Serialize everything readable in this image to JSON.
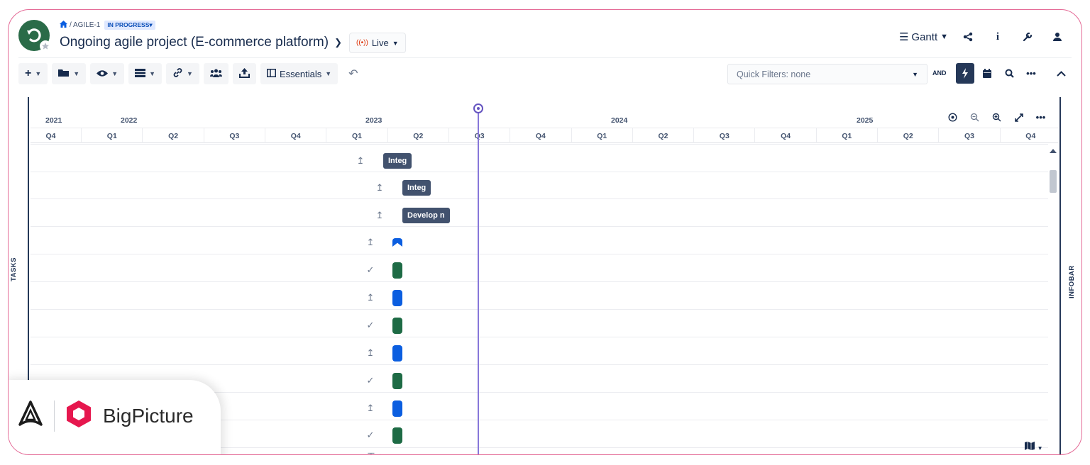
{
  "breadcrumb": {
    "home_icon": "home-icon",
    "key": "/ AGILE-1",
    "status": "IN PROGRESS"
  },
  "project": {
    "title": "Ongoing agile project (E-commerce platform)",
    "live_label": "Live"
  },
  "view": {
    "label": "Gantt"
  },
  "toolbar": {
    "essentials_label": "Essentials",
    "quick_filters": "Quick Filters: none",
    "and_label": "AND"
  },
  "rails": {
    "tasks": "TASKS",
    "infobar": "INFOBAR"
  },
  "timeline": {
    "years": [
      "2021",
      "2022",
      "2023",
      "2024",
      "2025"
    ],
    "quarters": [
      "Q4",
      "Q1",
      "Q2",
      "Q3",
      "Q4",
      "Q1",
      "Q2",
      "Q3",
      "Q4",
      "Q1",
      "Q2",
      "Q3",
      "Q4",
      "Q1",
      "Q2",
      "Q3",
      "Q4"
    ]
  },
  "tasks": [
    {
      "type": "label",
      "label": "Integ",
      "status_icon": "upload-icon"
    },
    {
      "type": "label",
      "label": "Integ",
      "status_icon": "upload-icon"
    },
    {
      "type": "label",
      "label": "Develop n",
      "status_icon": "upload-icon"
    },
    {
      "type": "milestone",
      "status_icon": "upload-icon"
    },
    {
      "type": "green",
      "status_icon": "check-icon"
    },
    {
      "type": "blue",
      "status_icon": "upload-icon"
    },
    {
      "type": "green",
      "status_icon": "check-icon"
    },
    {
      "type": "blue",
      "status_icon": "upload-icon"
    },
    {
      "type": "green",
      "status_icon": "check-icon"
    },
    {
      "type": "blue",
      "status_icon": "upload-icon"
    },
    {
      "type": "green",
      "status_icon": "check-icon"
    }
  ],
  "brand": {
    "name": "BigPicture"
  },
  "colors": {
    "accent": "#253858",
    "today_line": "#8777d9",
    "green": "#1e6b45",
    "blue": "#0b5ee0",
    "frame": "#e46a96"
  }
}
